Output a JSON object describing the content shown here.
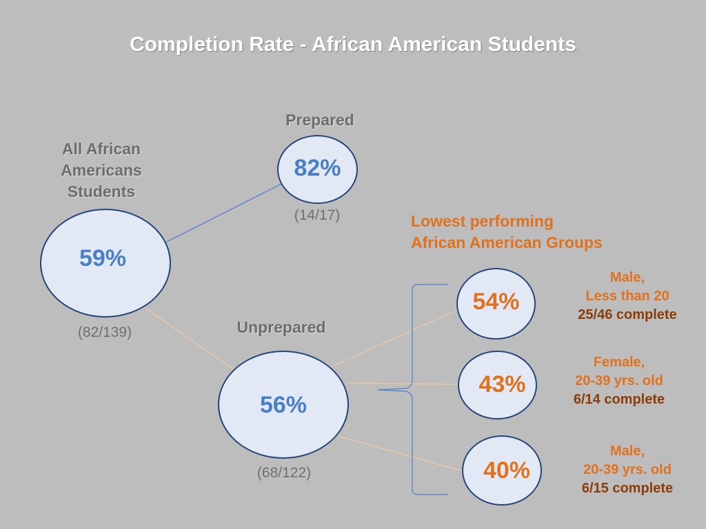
{
  "title": "Completion Rate  - African American Students",
  "all": {
    "heading_lines": [
      "All African",
      "Americans",
      "Students"
    ],
    "percent": "59%",
    "fraction": "(82/139)"
  },
  "prepared": {
    "heading": "Prepared",
    "percent": "82%",
    "fraction": "(14/17)"
  },
  "unprepared": {
    "heading": "Unprepared",
    "percent": "56%",
    "fraction": "(68/122)"
  },
  "lowest": {
    "title_lines": [
      "Lowest performing",
      "African American Groups"
    ],
    "groups": [
      {
        "percent": "54%",
        "lines": [
          "Male,",
          "Less than 20",
          "25/46 complete"
        ]
      },
      {
        "percent": "43%",
        "lines": [
          "Female,",
          "20-39 yrs. old",
          "6/14 complete"
        ]
      },
      {
        "percent": "40%",
        "lines": [
          "Male,",
          "20-39 yrs. old",
          "6/15 complete"
        ]
      }
    ]
  },
  "colors": {
    "background": "#bdbdbd",
    "circle_fill": "#e3e9f4",
    "circle_border": "#24457a",
    "blue_text": "#4a7fc8",
    "orange_text": "#e2711d",
    "dark_orange_text": "#8a3d08",
    "connector_blue": "#4a7fc8",
    "connector_orange": "#f2c9a0"
  }
}
